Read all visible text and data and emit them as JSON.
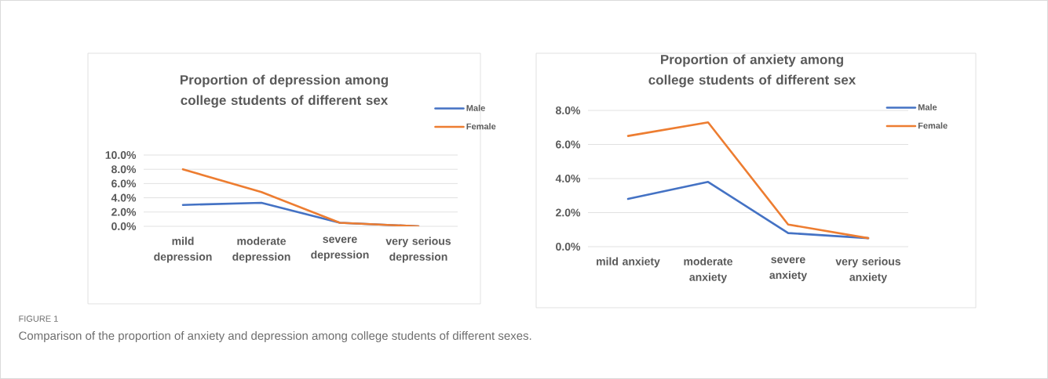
{
  "chart_data": [
    {
      "type": "line",
      "title": "Proportion of depression among college students of different sex",
      "categories": [
        "mild depression",
        "moderate depression",
        "severe depression",
        "very serious depression"
      ],
      "series": [
        {
          "name": "Male",
          "color": "#4472c4",
          "values": [
            3.0,
            3.3,
            0.5,
            0.0
          ]
        },
        {
          "name": "Female",
          "color": "#ed7d31",
          "values": [
            8.0,
            4.8,
            0.5,
            0.0
          ]
        }
      ],
      "ylim": [
        0,
        10
      ],
      "yticks": [
        {
          "value": 0,
          "label": "0.0%"
        },
        {
          "value": 2,
          "label": "2.0%"
        },
        {
          "value": 4,
          "label": "4.0%"
        },
        {
          "value": 6,
          "label": "6.0%"
        },
        {
          "value": 8,
          "label": "8.0%"
        },
        {
          "value": 10,
          "label": "10.0%"
        }
      ],
      "grid": "y",
      "legend": "top right",
      "marker": "none",
      "line_style": "solid",
      "annotations": [
        "FIGURE 1",
        "Comparison of the proportion of anxiety and depression among college students of different sexes."
      ]
    },
    {
      "type": "line",
      "title": "Proportion of anxiety among college students of different sex",
      "categories": [
        "mild anxiety",
        "moderate anxiety",
        "severe anxiety",
        "very serious anxiety"
      ],
      "series": [
        {
          "name": "Male",
          "color": "#4472c4",
          "values": [
            2.8,
            3.8,
            0.8,
            0.5
          ]
        },
        {
          "name": "Female",
          "color": "#ed7d31",
          "values": [
            6.5,
            7.3,
            1.3,
            0.5
          ]
        }
      ],
      "ylim": [
        0,
        8
      ],
      "yticks": [
        {
          "value": 0,
          "label": "0.0%"
        },
        {
          "value": 2,
          "label": "2.0%"
        },
        {
          "value": 4,
          "label": "4.0%"
        },
        {
          "value": 6,
          "label": "6.0%"
        },
        {
          "value": 8,
          "label": "8.0%"
        }
      ],
      "grid": "y",
      "legend": "top right",
      "marker": "none",
      "line_style": "solid"
    }
  ]
}
